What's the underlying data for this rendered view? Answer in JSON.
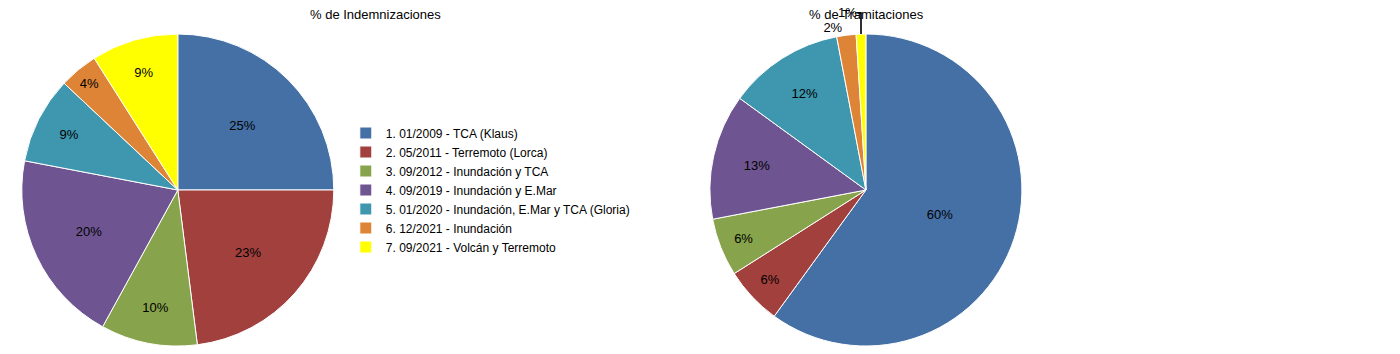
{
  "chart_data": [
    {
      "type": "pie",
      "title": "% de Indemnizaciones",
      "categories": [
        "1. 01/2009 - TCA (Klaus)",
        "2. 05/2011 - Terremoto (Lorca)",
        "3. 09/2012 - Inundación y TCA",
        "4. 09/2019 - Inundación y E.Mar",
        "5. 01/2020 - Inundación, E.Mar y TCA (Gloria)",
        "6. 12/2021 - Inundación",
        "7. 09/2021 - Volcán y Terremoto"
      ],
      "values": [
        25,
        23,
        10,
        20,
        9,
        4,
        9
      ],
      "value_labels": [
        "25%",
        "23%",
        "10%",
        "20%",
        "9%",
        "4%",
        "9%"
      ],
      "colors": [
        "#4570a6",
        "#a2403d",
        "#87a34b",
        "#6e5591",
        "#3e97ae",
        "#dd8437",
        "#ffff00"
      ],
      "data_labels": true,
      "legend": "right"
    },
    {
      "type": "pie",
      "title": "% de Tramitaciones",
      "categories": [
        "1. 01/2009 - TCA (Klaus)",
        "2. 05/2011 - Terremoto (Lorca)",
        "3. 09/2012 - Inundación y TCA",
        "4. 09/2019 - Inundación y E.Mar",
        "5. 01/2020 - Inundación, E.Mar y TCA (Gloria)",
        "6. 12/2021 - Inundación",
        "7. 09/2021 - Volcán y Terremoto"
      ],
      "values": [
        60,
        6,
        6,
        13,
        12,
        2,
        1
      ],
      "value_labels": [
        "60%",
        "6%",
        "6%",
        "13%",
        "12%",
        "2%",
        "1%"
      ],
      "colors": [
        "#4570a6",
        "#a2403d",
        "#87a34b",
        "#6e5591",
        "#3e97ae",
        "#dd8437",
        "#ffff00"
      ],
      "data_labels": true,
      "legend": "right"
    }
  ]
}
